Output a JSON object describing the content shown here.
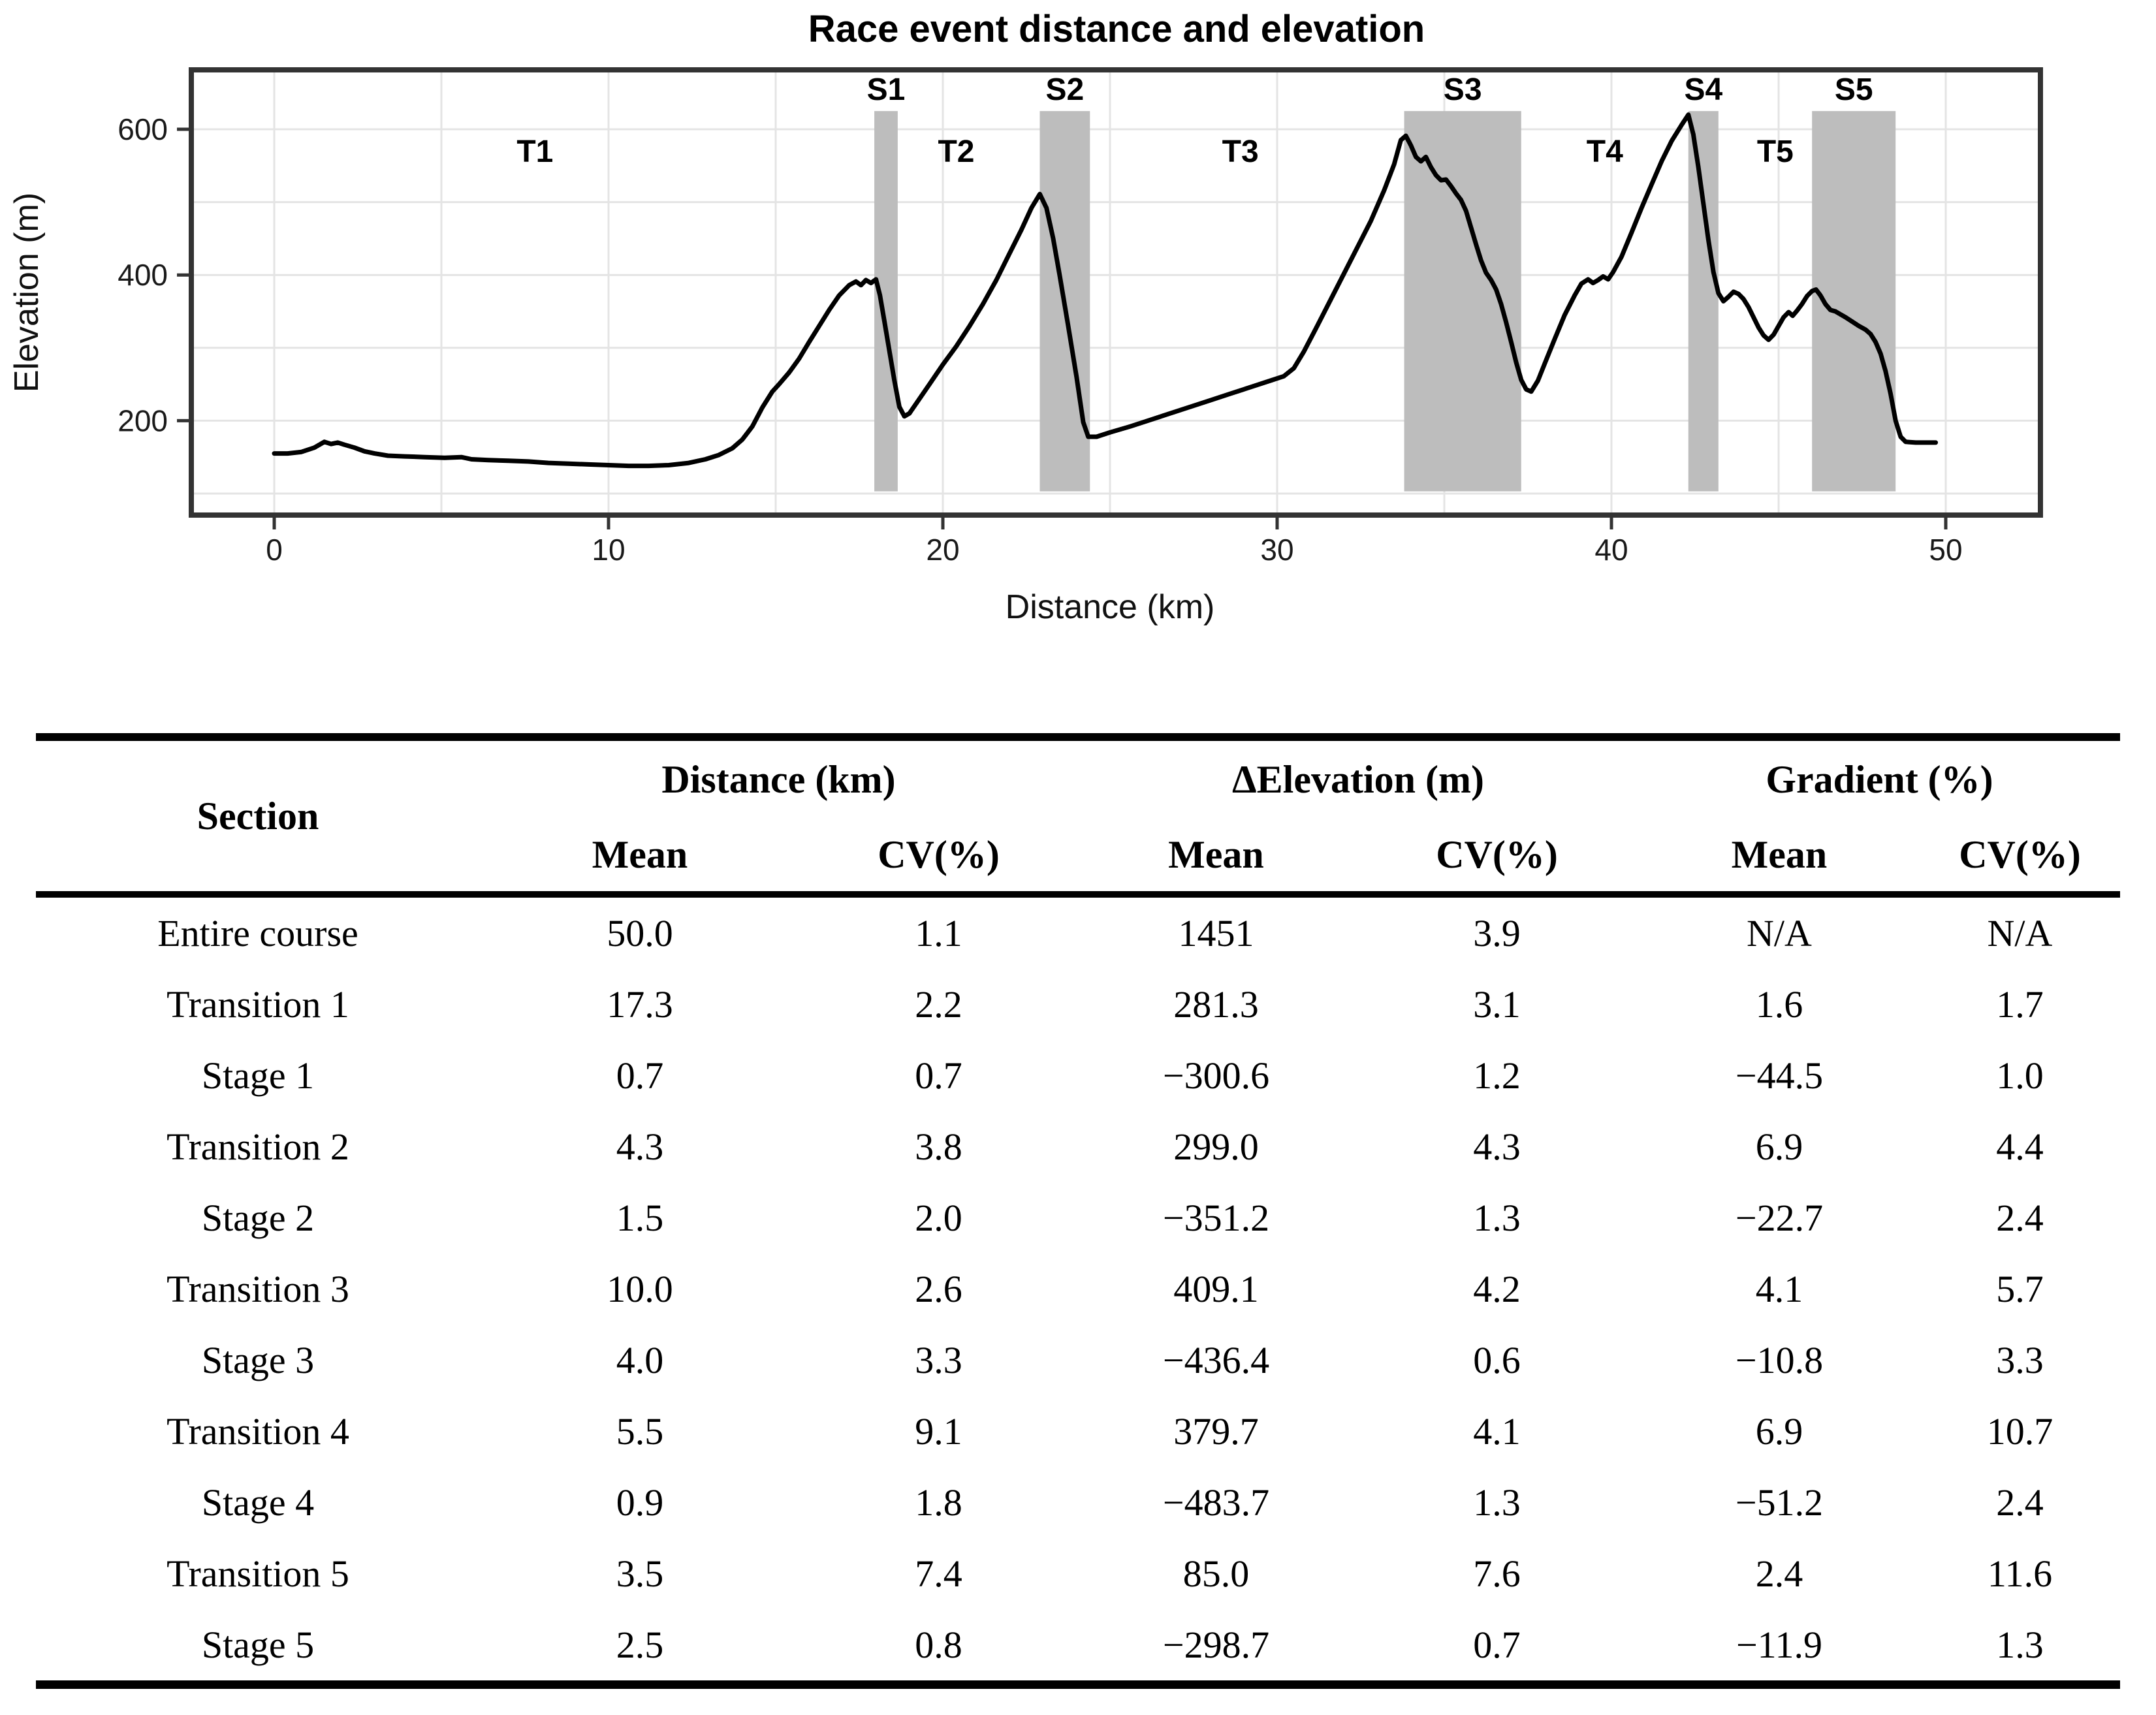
{
  "chart_data": {
    "type": "line",
    "title": "Race event distance and elevation",
    "xlabel": "Distance (km)",
    "ylabel": "Elevation (m)",
    "x_ticks": [
      0,
      10,
      20,
      30,
      40,
      50
    ],
    "y_ticks": [
      200,
      400,
      600
    ],
    "x_grid_step": 5,
    "x_grid_max": 50,
    "y_grid_min": 100,
    "y_grid_max": 600,
    "y_grid_step": 100,
    "xlim": [
      -2.5,
      52.8
    ],
    "ylim": [
      70,
      682
    ],
    "grid": true,
    "legend": "none",
    "line_color": "#000000",
    "band_color": "#bdbdbd",
    "stage_bands": [
      {
        "label": "S1",
        "from": 17.95,
        "to": 18.65
      },
      {
        "label": "S2",
        "from": 22.9,
        "to": 24.4
      },
      {
        "label": "S3",
        "from": 33.8,
        "to": 37.3
      },
      {
        "label": "S4",
        "from": 42.3,
        "to": 43.2
      },
      {
        "label": "S5",
        "from": 46.0,
        "to": 48.5
      }
    ],
    "transition_labels": [
      {
        "label": "T1",
        "x": 7.8
      },
      {
        "label": "T2",
        "x": 20.4
      },
      {
        "label": "T3",
        "x": 28.9
      },
      {
        "label": "T4",
        "x": 39.8
      },
      {
        "label": "T5",
        "x": 44.9
      }
    ],
    "profile": [
      [
        0,
        155
      ],
      [
        0.4,
        155
      ],
      [
        0.8,
        157
      ],
      [
        1.2,
        163
      ],
      [
        1.5,
        171
      ],
      [
        1.7,
        168
      ],
      [
        1.9,
        170
      ],
      [
        2.1,
        167
      ],
      [
        2.4,
        163
      ],
      [
        2.7,
        158
      ],
      [
        3.0,
        155
      ],
      [
        3.4,
        152
      ],
      [
        3.9,
        151
      ],
      [
        4.5,
        150
      ],
      [
        5.1,
        149
      ],
      [
        5.6,
        150
      ],
      [
        5.9,
        147
      ],
      [
        6.4,
        146
      ],
      [
        7.0,
        145
      ],
      [
        7.6,
        144
      ],
      [
        8.2,
        142
      ],
      [
        8.8,
        141
      ],
      [
        9.4,
        140
      ],
      [
        10.0,
        139
      ],
      [
        10.6,
        138
      ],
      [
        11.2,
        138
      ],
      [
        11.8,
        139
      ],
      [
        12.4,
        142
      ],
      [
        12.9,
        147
      ],
      [
        13.3,
        153
      ],
      [
        13.7,
        162
      ],
      [
        14.0,
        174
      ],
      [
        14.3,
        192
      ],
      [
        14.6,
        218
      ],
      [
        14.9,
        240
      ],
      [
        15.1,
        250
      ],
      [
        15.4,
        266
      ],
      [
        15.7,
        285
      ],
      [
        16.0,
        308
      ],
      [
        16.3,
        330
      ],
      [
        16.6,
        352
      ],
      [
        16.9,
        372
      ],
      [
        17.2,
        386
      ],
      [
        17.4,
        391
      ],
      [
        17.55,
        386
      ],
      [
        17.7,
        393
      ],
      [
        17.85,
        389
      ],
      [
        18.0,
        394
      ],
      [
        18.12,
        372
      ],
      [
        18.25,
        337
      ],
      [
        18.4,
        296
      ],
      [
        18.55,
        255
      ],
      [
        18.7,
        219
      ],
      [
        18.85,
        206
      ],
      [
        19.0,
        210
      ],
      [
        19.3,
        230
      ],
      [
        19.6,
        250
      ],
      [
        20.0,
        277
      ],
      [
        20.4,
        302
      ],
      [
        20.8,
        330
      ],
      [
        21.2,
        360
      ],
      [
        21.6,
        393
      ],
      [
        22.0,
        430
      ],
      [
        22.35,
        462
      ],
      [
        22.65,
        492
      ],
      [
        22.9,
        511
      ],
      [
        23.1,
        492
      ],
      [
        23.3,
        450
      ],
      [
        23.5,
        398
      ],
      [
        23.75,
        330
      ],
      [
        24.0,
        260
      ],
      [
        24.2,
        198
      ],
      [
        24.35,
        178
      ],
      [
        24.6,
        178
      ],
      [
        25.0,
        184
      ],
      [
        25.6,
        192
      ],
      [
        26.2,
        201
      ],
      [
        26.8,
        210
      ],
      [
        27.4,
        219
      ],
      [
        28.0,
        228
      ],
      [
        28.6,
        237
      ],
      [
        29.2,
        246
      ],
      [
        29.8,
        255
      ],
      [
        30.2,
        261
      ],
      [
        30.5,
        272
      ],
      [
        30.8,
        295
      ],
      [
        31.2,
        330
      ],
      [
        31.6,
        366
      ],
      [
        32.0,
        402
      ],
      [
        32.4,
        438
      ],
      [
        32.8,
        474
      ],
      [
        33.2,
        516
      ],
      [
        33.5,
        552
      ],
      [
        33.7,
        585
      ],
      [
        33.85,
        591
      ],
      [
        34.0,
        578
      ],
      [
        34.15,
        562
      ],
      [
        34.3,
        556
      ],
      [
        34.45,
        562
      ],
      [
        34.6,
        548
      ],
      [
        34.75,
        537
      ],
      [
        34.9,
        530
      ],
      [
        35.05,
        531
      ],
      [
        35.2,
        522
      ],
      [
        35.35,
        512
      ],
      [
        35.5,
        503
      ],
      [
        35.65,
        488
      ],
      [
        35.8,
        465
      ],
      [
        35.95,
        442
      ],
      [
        36.1,
        420
      ],
      [
        36.25,
        403
      ],
      [
        36.4,
        393
      ],
      [
        36.55,
        380
      ],
      [
        36.7,
        360
      ],
      [
        36.85,
        335
      ],
      [
        37.0,
        308
      ],
      [
        37.15,
        280
      ],
      [
        37.3,
        256
      ],
      [
        37.45,
        243
      ],
      [
        37.6,
        240
      ],
      [
        37.8,
        255
      ],
      [
        38.0,
        278
      ],
      [
        38.3,
        312
      ],
      [
        38.6,
        345
      ],
      [
        38.9,
        372
      ],
      [
        39.1,
        388
      ],
      [
        39.3,
        394
      ],
      [
        39.45,
        389
      ],
      [
        39.6,
        393
      ],
      [
        39.75,
        398
      ],
      [
        39.9,
        394
      ],
      [
        40.05,
        404
      ],
      [
        40.3,
        425
      ],
      [
        40.6,
        458
      ],
      [
        40.9,
        492
      ],
      [
        41.2,
        524
      ],
      [
        41.5,
        556
      ],
      [
        41.8,
        584
      ],
      [
        42.1,
        606
      ],
      [
        42.3,
        620
      ],
      [
        42.45,
        593
      ],
      [
        42.6,
        548
      ],
      [
        42.75,
        498
      ],
      [
        42.9,
        448
      ],
      [
        43.05,
        404
      ],
      [
        43.2,
        375
      ],
      [
        43.35,
        364
      ],
      [
        43.5,
        370
      ],
      [
        43.65,
        377
      ],
      [
        43.8,
        374
      ],
      [
        43.95,
        367
      ],
      [
        44.1,
        356
      ],
      [
        44.25,
        342
      ],
      [
        44.4,
        328
      ],
      [
        44.55,
        317
      ],
      [
        44.7,
        311
      ],
      [
        44.85,
        318
      ],
      [
        45.0,
        330
      ],
      [
        45.15,
        342
      ],
      [
        45.3,
        349
      ],
      [
        45.42,
        344
      ],
      [
        45.55,
        351
      ],
      [
        45.7,
        360
      ],
      [
        45.85,
        371
      ],
      [
        46.0,
        378
      ],
      [
        46.12,
        380
      ],
      [
        46.25,
        372
      ],
      [
        46.4,
        360
      ],
      [
        46.55,
        352
      ],
      [
        46.7,
        350
      ],
      [
        46.85,
        346
      ],
      [
        47.0,
        342
      ],
      [
        47.2,
        336
      ],
      [
        47.4,
        330
      ],
      [
        47.6,
        325
      ],
      [
        47.75,
        319
      ],
      [
        47.9,
        308
      ],
      [
        48.05,
        292
      ],
      [
        48.2,
        268
      ],
      [
        48.35,
        237
      ],
      [
        48.5,
        200
      ],
      [
        48.65,
        178
      ],
      [
        48.8,
        171
      ],
      [
        49.1,
        170
      ],
      [
        49.4,
        170
      ],
      [
        49.7,
        170
      ]
    ]
  },
  "table": {
    "section_header": "Section",
    "groups": [
      {
        "label": "Distance (km)"
      },
      {
        "label": "ΔElevation (m)"
      },
      {
        "label": "Gradient (%)"
      }
    ],
    "sub_headers": [
      "Mean",
      "CV(%)",
      "Mean",
      "CV(%)",
      "Mean",
      "CV(%)"
    ],
    "rows": [
      [
        "Entire course",
        "50.0",
        "1.1",
        "1451",
        "3.9",
        "N/A",
        "N/A"
      ],
      [
        "Transition 1",
        "17.3",
        "2.2",
        "281.3",
        "3.1",
        "1.6",
        "1.7"
      ],
      [
        "Stage 1",
        "0.7",
        "0.7",
        "−300.6",
        "1.2",
        "−44.5",
        "1.0"
      ],
      [
        "Transition 2",
        "4.3",
        "3.8",
        "299.0",
        "4.3",
        "6.9",
        "4.4"
      ],
      [
        "Stage 2",
        "1.5",
        "2.0",
        "−351.2",
        "1.3",
        "−22.7",
        "2.4"
      ],
      [
        "Transition 3",
        "10.0",
        "2.6",
        "409.1",
        "4.2",
        "4.1",
        "5.7"
      ],
      [
        "Stage 3",
        "4.0",
        "3.3",
        "−436.4",
        "0.6",
        "−10.8",
        "3.3"
      ],
      [
        "Transition 4",
        "5.5",
        "9.1",
        "379.7",
        "4.1",
        "6.9",
        "10.7"
      ],
      [
        "Stage 4",
        "0.9",
        "1.8",
        "−483.7",
        "1.3",
        "−51.2",
        "2.4"
      ],
      [
        "Transition 5",
        "3.5",
        "7.4",
        "85.0",
        "7.6",
        "2.4",
        "11.6"
      ],
      [
        "Stage 5",
        "2.5",
        "0.8",
        "−298.7",
        "0.7",
        "−11.9",
        "1.3"
      ]
    ]
  }
}
